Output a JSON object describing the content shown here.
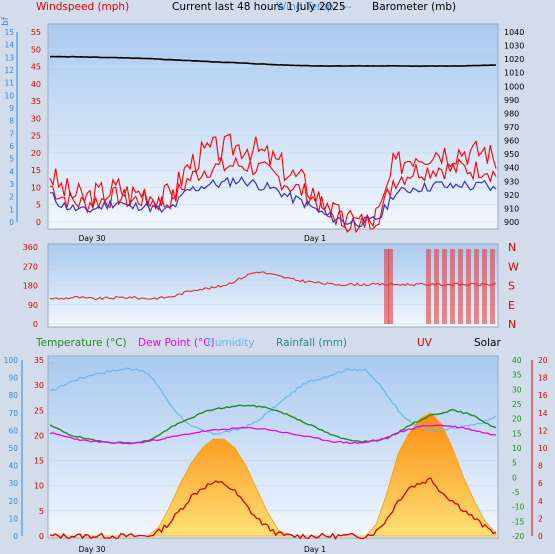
{
  "header": {
    "windspeed": "Windspeed (mph)",
    "title": "Current last 48 hours 1 July 2025",
    "overlap": "Wind Temp. ---",
    "barometer": "Barometer (mb)",
    "bf_unit": "bf"
  },
  "legend2": {
    "temperature": "Temperature (°C)",
    "dewpoint": "Dew Point (°C)",
    "humidity": "Humidity",
    "rainfall": "Rainfall (mm)",
    "uv": "UV",
    "solar": "Solar"
  },
  "colors": {
    "panel_bg_top": "#b6d2f2",
    "panel_bg_bottom": "#eef4fc",
    "wind_gust": "#ff0000",
    "wind_avg": "#3333cc",
    "barometer": "#000000",
    "wind_dir": "#e03030",
    "temperature": "#228b22",
    "dewpoint": "#ee00ee",
    "humidity": "#66b8ee",
    "uv_line": "#dd0000",
    "solar_fill": "#ff9900",
    "axis_blue": "#3388dd",
    "axis_red": "#dd0000",
    "axis_green": "#228b22"
  },
  "chart_data": [
    {
      "type": "line",
      "title": "Current last 48 hours 1 July 2025",
      "x_labels": [
        "Day 30",
        "Day 1"
      ],
      "axes": {
        "bf": {
          "ticks": [
            0,
            1,
            2,
            3,
            4,
            5,
            6,
            7,
            8,
            9,
            10,
            11,
            12,
            13,
            14,
            15
          ]
        },
        "mph": {
          "ylim": [
            0,
            55
          ],
          "ticks": [
            0,
            5,
            10,
            15,
            20,
            25,
            30,
            35,
            40,
            45,
            50,
            55
          ]
        },
        "barometer_mb": {
          "ylim": [
            900,
            1040
          ],
          "ticks": [
            900,
            910,
            920,
            930,
            940,
            950,
            960,
            970,
            980,
            990,
            1000,
            1010,
            1020,
            1030,
            1040
          ]
        }
      },
      "series": [
        {
          "name": "Windspeed",
          "axis": "mph",
          "values": [
            8,
            5,
            4,
            3,
            4,
            5,
            6,
            4,
            5,
            4,
            3,
            5,
            9,
            10,
            11,
            11,
            12,
            12,
            11,
            10,
            9,
            7,
            6,
            4,
            2,
            1,
            0,
            0,
            0,
            2,
            8,
            9,
            10,
            10,
            11,
            10,
            11,
            10,
            11,
            9
          ]
        },
        {
          "name": "Barometer",
          "axis": "barometer_mb",
          "values": [
            1021.8,
            1021.8,
            1021.8,
            1021.6,
            1021.4,
            1021.2,
            1021.0,
            1020.8,
            1020.5,
            1020.2,
            1019.8,
            1019.4,
            1019.0,
            1018.6,
            1018.2,
            1017.8,
            1017.4,
            1017.0,
            1016.6,
            1016.2,
            1015.8,
            1015.5,
            1015.3,
            1015.1,
            1015.0,
            1015.0,
            1015.0,
            1015.0,
            1015.0,
            1015.0,
            1015.0,
            1015.0,
            1014.9,
            1014.9,
            1014.9,
            1014.9,
            1015.0,
            1015.2,
            1015.4,
            1015.6
          ]
        }
      ],
      "gust_values": [
        14,
        10,
        8,
        7,
        8,
        9,
        10,
        8,
        9,
        8,
        7,
        10,
        16,
        19,
        21,
        21,
        22,
        22,
        21,
        19,
        17,
        14,
        12,
        9,
        5,
        2,
        0,
        0,
        0,
        4,
        16,
        18,
        20,
        20,
        21,
        20,
        21,
        20,
        21,
        18
      ]
    },
    {
      "type": "line",
      "axes": {
        "direction_deg": {
          "ylim": [
            0,
            360
          ],
          "ticks": [
            0,
            90,
            180,
            270,
            360
          ],
          "compass": [
            "N",
            "E",
            "S",
            "W",
            "N"
          ]
        }
      },
      "series": [
        {
          "name": "Wind direction",
          "axis": "direction_deg",
          "values": [
            120,
            118,
            122,
            125,
            120,
            118,
            120,
            122,
            124,
            125,
            120,
            119,
            122,
            125,
            135,
            150,
            162,
            165,
            170,
            180,
            195,
            215,
            235,
            245,
            235,
            225,
            215,
            205,
            200,
            195,
            190,
            185,
            185,
            185,
            185,
            185,
            185,
            185,
            185,
            185,
            185,
            185,
            185,
            185,
            185,
            185,
            185,
            185,
            185,
            185
          ]
        }
      ]
    },
    {
      "type": "line",
      "axes": {
        "humidity_pct": {
          "ylim": [
            0,
            100
          ],
          "ticks": [
            0,
            10,
            20,
            30,
            40,
            50,
            60,
            70,
            80,
            90,
            100
          ]
        },
        "temp_c": {
          "ylim": [
            0,
            35
          ],
          "ticks": [
            0,
            5,
            10,
            15,
            20,
            25,
            30,
            35
          ]
        },
        "rain_mm": {
          "ylim": [
            -20,
            40
          ],
          "ticks": [
            -20,
            -15,
            -10,
            -5,
            0,
            5,
            10,
            15,
            20,
            25,
            30,
            35,
            40
          ]
        },
        "uv_index": {
          "ylim": [
            0,
            20
          ],
          "ticks": [
            0,
            2,
            4,
            6,
            8,
            10,
            12,
            14,
            16,
            18,
            20
          ]
        }
      },
      "series": [
        {
          "name": "Temperature",
          "axis": "temp_c",
          "values": [
            22.0,
            21.0,
            20.0,
            19.5,
            19.0,
            18.8,
            18.6,
            18.5,
            18.5,
            19.0,
            20.0,
            21.5,
            22.5,
            23.5,
            24.5,
            25.2,
            25.5,
            25.8,
            26.0,
            25.8,
            25.5,
            24.8,
            24.0,
            23.0,
            22.0,
            21.0,
            20.0,
            19.3,
            19.0,
            18.8,
            19.0,
            19.5,
            20.5,
            22.0,
            23.0,
            24.0,
            24.5,
            25.0,
            24.5,
            24.0,
            22.5,
            21.5
          ]
        },
        {
          "name": "Dew Point",
          "axis": "temp_c",
          "values": [
            20.5,
            20.0,
            19.5,
            19.0,
            18.8,
            18.6,
            18.5,
            18.5,
            18.5,
            18.8,
            19.2,
            19.6,
            20.0,
            20.4,
            20.8,
            21.0,
            21.2,
            21.4,
            21.5,
            21.4,
            21.2,
            20.8,
            20.4,
            20.0,
            19.6,
            19.2,
            18.8,
            18.6,
            18.5,
            18.6,
            19.0,
            19.6,
            20.5,
            21.2,
            21.8,
            22.0,
            22.0,
            21.8,
            21.5,
            21.0,
            20.5,
            20.0
          ]
        },
        {
          "name": "Humidity",
          "axis": "humidity_pct",
          "values": [
            82,
            85,
            88,
            90,
            92,
            93,
            94,
            95,
            95,
            92,
            85,
            75,
            68,
            62,
            60,
            58,
            59,
            60,
            62,
            65,
            70,
            75,
            80,
            85,
            88,
            90,
            92,
            94,
            95,
            94,
            88,
            80,
            72,
            65,
            62,
            60,
            60,
            61,
            62,
            63,
            65,
            68
          ]
        },
        {
          "name": "Solar",
          "axis": "rain_mm",
          "values": [
            -20,
            -20,
            -20,
            -20,
            -20,
            -20,
            -20,
            -20,
            -20,
            -20,
            -17,
            -10,
            -2,
            5,
            10,
            13,
            13,
            10,
            4,
            -4,
            -12,
            -18,
            -20,
            -20,
            -20,
            -20,
            -20,
            -20,
            -20,
            -20,
            -16,
            -5,
            8,
            15,
            20,
            22,
            18,
            10,
            0,
            -8,
            -15,
            -19
          ]
        },
        {
          "name": "UV",
          "axis": "uv_index",
          "values": [
            0,
            0,
            0,
            0,
            0,
            0,
            0,
            0,
            0,
            0,
            0.5,
            1.5,
            3,
            4.5,
            5.5,
            6,
            6,
            5,
            3.5,
            2,
            1,
            0.2,
            0,
            0,
            0,
            0,
            0,
            0,
            0,
            0,
            0.5,
            2,
            4,
            5.5,
            6,
            6.5,
            5,
            4,
            3,
            2,
            1,
            0.3
          ]
        }
      ]
    }
  ]
}
